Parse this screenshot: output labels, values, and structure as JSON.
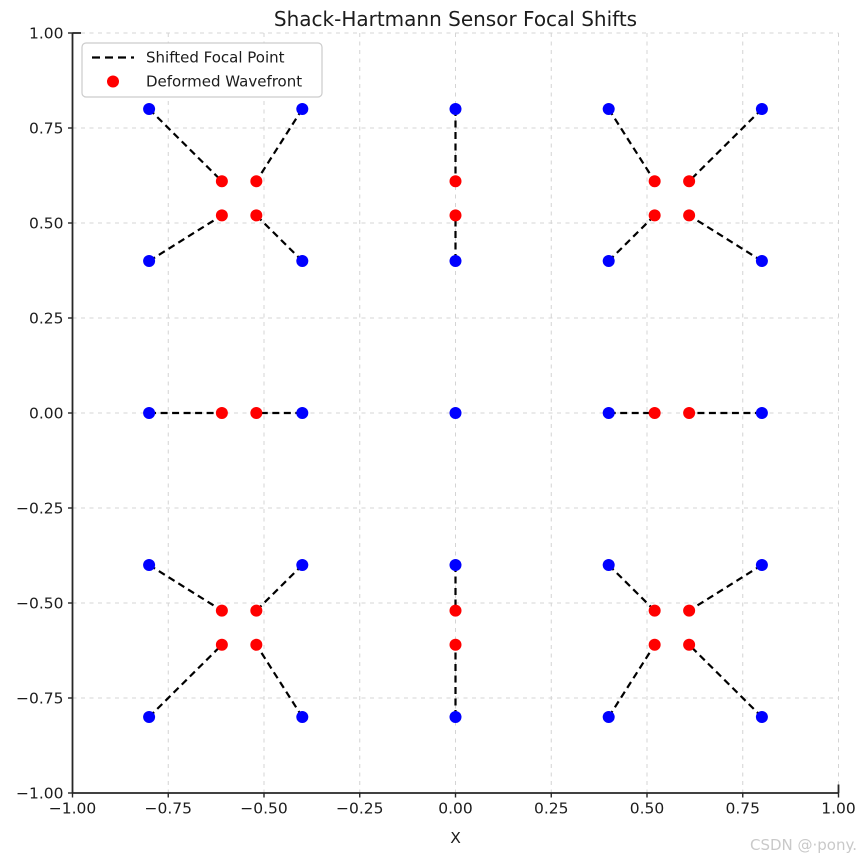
{
  "watermark": {
    "text": "CSDN @·pony.",
    "color": "#c9c9c9"
  },
  "chart_data": {
    "type": "scatter",
    "title": "Shack-Hartmann Sensor Focal Shifts",
    "xlabel": "X",
    "ylabel": "",
    "xlim": [
      -1.0,
      1.0
    ],
    "ylim": [
      -1.0,
      1.0
    ],
    "grid": true,
    "grid_color": "#d4d4d4",
    "axis_color": "#262626",
    "tick_label_color": "#1c1c1c",
    "xticks": [
      -1.0,
      -0.75,
      -0.5,
      -0.25,
      0.0,
      0.25,
      0.5,
      0.75,
      1.0
    ],
    "xtick_labels": [
      "−1.00",
      "−0.75",
      "−0.50",
      "−0.25",
      "0.00",
      "0.25",
      "0.50",
      "0.75",
      "1.00"
    ],
    "yticks": [
      -1.0,
      -0.75,
      -0.5,
      -0.25,
      0.0,
      0.25,
      0.5,
      0.75,
      1.0
    ],
    "ytick_labels": [
      "−1.00",
      "−0.75",
      "−0.50",
      "−0.25",
      "0.00",
      "0.25",
      "0.50",
      "0.75",
      "1.00"
    ],
    "legend": {
      "position": "upper left",
      "entries": [
        {
          "label": "Shifted Focal Point",
          "type": "dashed-line",
          "color": "#000000"
        },
        {
          "label": "Deformed Wavefront",
          "type": "dot",
          "color": "#ff0000"
        }
      ]
    },
    "series": [
      {
        "id": "deformed-wavefront-spots",
        "legend_label": "Deformed Wavefront",
        "marker": "dot",
        "color": "#ff0000",
        "points": [
          [
            -0.61,
            -0.61
          ],
          [
            -0.61,
            -0.52
          ],
          [
            -0.61,
            0.0
          ],
          [
            -0.61,
            0.52
          ],
          [
            -0.61,
            0.61
          ],
          [
            -0.52,
            -0.61
          ],
          [
            -0.52,
            -0.52
          ],
          [
            -0.52,
            0.0
          ],
          [
            -0.52,
            0.52
          ],
          [
            -0.52,
            0.61
          ],
          [
            0.0,
            -0.61
          ],
          [
            0.0,
            -0.52
          ],
          [
            0.0,
            0.52
          ],
          [
            0.0,
            0.61
          ],
          [
            0.52,
            -0.61
          ],
          [
            0.52,
            -0.52
          ],
          [
            0.52,
            0.0
          ],
          [
            0.52,
            0.52
          ],
          [
            0.52,
            0.61
          ],
          [
            0.61,
            -0.61
          ],
          [
            0.61,
            -0.52
          ],
          [
            0.61,
            0.0
          ],
          [
            0.61,
            0.52
          ],
          [
            0.61,
            0.61
          ]
        ]
      },
      {
        "id": "lenslet-reference-spots",
        "legend_label": null,
        "marker": "dot",
        "color": "#0000ff",
        "points": [
          [
            -0.8,
            -0.8
          ],
          [
            -0.8,
            -0.4
          ],
          [
            -0.8,
            0.0
          ],
          [
            -0.8,
            0.4
          ],
          [
            -0.8,
            0.8
          ],
          [
            -0.4,
            -0.8
          ],
          [
            -0.4,
            -0.4
          ],
          [
            -0.4,
            0.0
          ],
          [
            -0.4,
            0.4
          ],
          [
            -0.4,
            0.8
          ],
          [
            0.0,
            -0.8
          ],
          [
            0.0,
            -0.4
          ],
          [
            0.0,
            0.0
          ],
          [
            0.0,
            0.4
          ],
          [
            0.0,
            0.8
          ],
          [
            0.4,
            -0.8
          ],
          [
            0.4,
            -0.4
          ],
          [
            0.4,
            0.0
          ],
          [
            0.4,
            0.4
          ],
          [
            0.4,
            0.8
          ],
          [
            0.8,
            -0.8
          ],
          [
            0.8,
            -0.4
          ],
          [
            0.8,
            0.0
          ],
          [
            0.8,
            0.4
          ],
          [
            0.8,
            0.8
          ]
        ]
      }
    ],
    "shift_segments": {
      "color": "#000000",
      "style": "dashed",
      "pairs": [
        [
          [
            -0.8,
            -0.8
          ],
          [
            -0.61,
            -0.61
          ]
        ],
        [
          [
            -0.8,
            -0.4
          ],
          [
            -0.61,
            -0.52
          ]
        ],
        [
          [
            -0.8,
            0.0
          ],
          [
            -0.61,
            0.0
          ]
        ],
        [
          [
            -0.8,
            0.4
          ],
          [
            -0.61,
            0.52
          ]
        ],
        [
          [
            -0.8,
            0.8
          ],
          [
            -0.61,
            0.61
          ]
        ],
        [
          [
            -0.4,
            -0.8
          ],
          [
            -0.52,
            -0.61
          ]
        ],
        [
          [
            -0.4,
            -0.4
          ],
          [
            -0.52,
            -0.52
          ]
        ],
        [
          [
            -0.4,
            0.0
          ],
          [
            -0.52,
            0.0
          ]
        ],
        [
          [
            -0.4,
            0.4
          ],
          [
            -0.52,
            0.52
          ]
        ],
        [
          [
            -0.4,
            0.8
          ],
          [
            -0.52,
            0.61
          ]
        ],
        [
          [
            0.0,
            -0.8
          ],
          [
            0.0,
            -0.61
          ]
        ],
        [
          [
            0.0,
            -0.4
          ],
          [
            0.0,
            -0.52
          ]
        ],
        [
          [
            0.0,
            0.4
          ],
          [
            0.0,
            0.52
          ]
        ],
        [
          [
            0.0,
            0.8
          ],
          [
            0.0,
            0.61
          ]
        ],
        [
          [
            0.4,
            -0.8
          ],
          [
            0.52,
            -0.61
          ]
        ],
        [
          [
            0.4,
            -0.4
          ],
          [
            0.52,
            -0.52
          ]
        ],
        [
          [
            0.4,
            0.0
          ],
          [
            0.52,
            0.0
          ]
        ],
        [
          [
            0.4,
            0.4
          ],
          [
            0.52,
            0.52
          ]
        ],
        [
          [
            0.4,
            0.8
          ],
          [
            0.52,
            0.61
          ]
        ],
        [
          [
            0.8,
            -0.8
          ],
          [
            0.61,
            -0.61
          ]
        ],
        [
          [
            0.8,
            -0.4
          ],
          [
            0.61,
            -0.52
          ]
        ],
        [
          [
            0.8,
            0.0
          ],
          [
            0.61,
            0.0
          ]
        ],
        [
          [
            0.8,
            0.4
          ],
          [
            0.61,
            0.52
          ]
        ],
        [
          [
            0.8,
            0.8
          ],
          [
            0.61,
            0.61
          ]
        ]
      ]
    }
  }
}
